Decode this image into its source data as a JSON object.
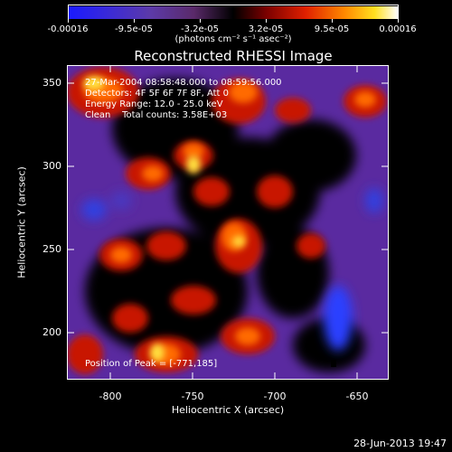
{
  "colorbar": {
    "tick_labels": [
      "-0.00016",
      "-9.5e-05",
      "-3.2e-05",
      "3.2e-05",
      "9.5e-05",
      "0.00016"
    ],
    "units": "(photons cm⁻² s⁻¹ asec⁻²)"
  },
  "title": "Reconstructed RHESSI Image",
  "info": {
    "time": "27-Mar-2004 08:58:48.000 to 08:59:56.000",
    "detectors": "Detectors: 4F 5F 6F 7F 8F, Att 0",
    "energy": "Energy Range: 12.0 - 25.0 keV",
    "clean": "Clean    Total counts: 3.58E+03"
  },
  "peak_label": "Position of Peak = [-771,185]",
  "axes": {
    "xlabel": "Heliocentric X (arcsec)",
    "ylabel": "Heliocentric Y (arcsec)",
    "x_ticks": [
      "-800",
      "-750",
      "-700",
      "-650"
    ],
    "y_ticks": [
      "200",
      "250",
      "300",
      "350"
    ],
    "x_range": [
      -829,
      -634
    ],
    "y_range": [
      168,
      362
    ]
  },
  "datestamp": "28-Jun-2013 19:47"
}
